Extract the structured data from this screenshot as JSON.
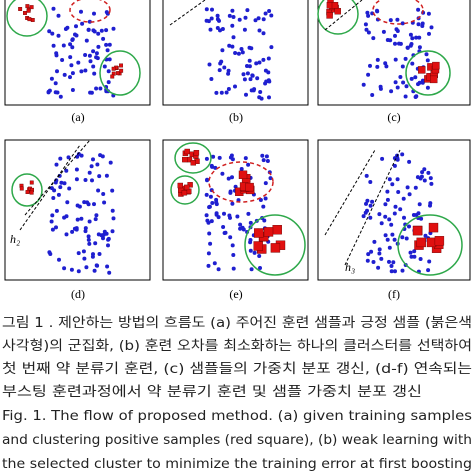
{
  "figure": {
    "panel_labels": [
      "(a)",
      "(b)",
      "(c)",
      "(d)",
      "(e)",
      "(f)"
    ],
    "classifier_labels": [
      "h₂",
      "h₃"
    ]
  },
  "caption": {
    "korean": [
      "그림 1 . 제안하는 방법의 흐름도 (a) 주어진 훈련 샘플과 긍정 샘플 (붉은색",
      "사각형)의 군집화, (b) 훈련 오차를 최소화하는 하나의 클러스터를 선택하여",
      "첫 번째 약 분류기 훈련, (c) 샘플들의 가중치 분포 갱신, (d-f) 연속되는",
      "부스팅 훈련과정에서 약 분류기 훈련 및 샘플 가중치 분포 갱신"
    ],
    "english": [
      "Fig. 1.  The flow of proposed method. (a) given training samples",
      "and clustering positive samples (red square), (b) weak learning with",
      "the selected cluster to minimize the training error at first boosting"
    ]
  }
}
